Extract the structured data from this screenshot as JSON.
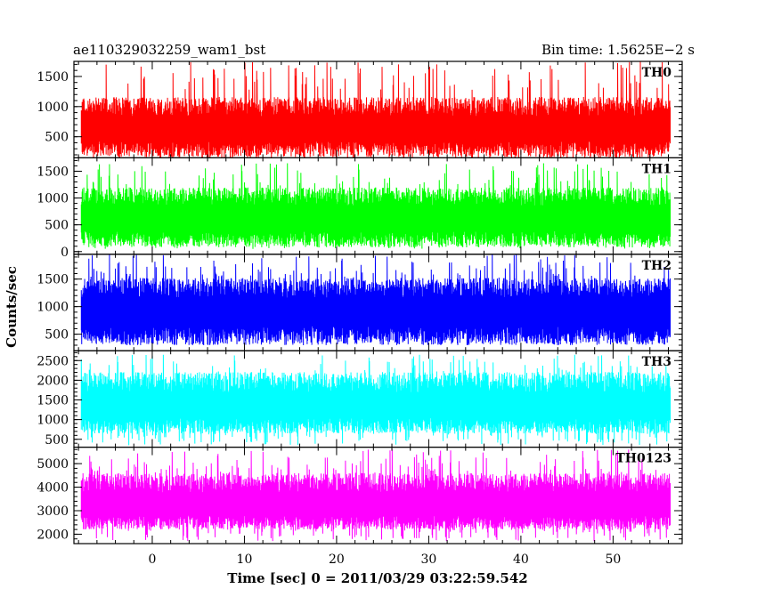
{
  "header": {
    "title": "ae110329032259_wam1_bst",
    "bin_time": "Bin time: 1.5625E−2 s"
  },
  "chart_data": {
    "type": "line",
    "xlabel": "Time [sec] 0 = 2011/03/29 03:22:59.542",
    "ylabel": "Counts/sec",
    "xlim": [
      -8.5,
      57.5
    ],
    "x_ticks": [
      0,
      10,
      20,
      30,
      40,
      50
    ],
    "data_x_range": [
      -7.7,
      56.2
    ],
    "grid": false,
    "panels": [
      {
        "name": "TH0",
        "color": "#ff0000",
        "ylim": [
          150,
          1750
        ],
        "yticks": [
          500,
          1000,
          1500
        ],
        "baseline": 150,
        "mean": 700,
        "spread": 230,
        "max": 1750,
        "peaks_low": [
          250,
          450
        ]
      },
      {
        "name": "TH1",
        "color": "#00ff00",
        "ylim": [
          -50,
          1750
        ],
        "yticks": [
          0,
          500,
          1000,
          1500
        ],
        "baseline": 80,
        "mean": 700,
        "spread": 250,
        "max": 1650,
        "peaks_low": [
          50,
          300
        ]
      },
      {
        "name": "TH2",
        "color": "#0000ff",
        "ylim": [
          200,
          1950
        ],
        "yticks": [
          500,
          1000,
          1500
        ],
        "baseline": 300,
        "mean": 1000,
        "spread": 260,
        "max": 1950,
        "peaks_low": [
          300,
          550
        ]
      },
      {
        "name": "TH3",
        "color": "#00ffff",
        "ylim": [
          300,
          2750
        ],
        "yticks": [
          500,
          1000,
          1500,
          2000,
          2500
        ],
        "baseline": 650,
        "mean": 1450,
        "spread": 380,
        "max": 2650,
        "peaks_low": [
          350,
          700
        ]
      },
      {
        "name": "TH0123",
        "color": "#ff00ff",
        "ylim": [
          1600,
          5700
        ],
        "yticks": [
          2000,
          3000,
          4000,
          5000
        ],
        "baseline": 2200,
        "mean": 3400,
        "spread": 600,
        "max": 5600,
        "peaks_low": [
          1700,
          2400
        ]
      }
    ]
  }
}
